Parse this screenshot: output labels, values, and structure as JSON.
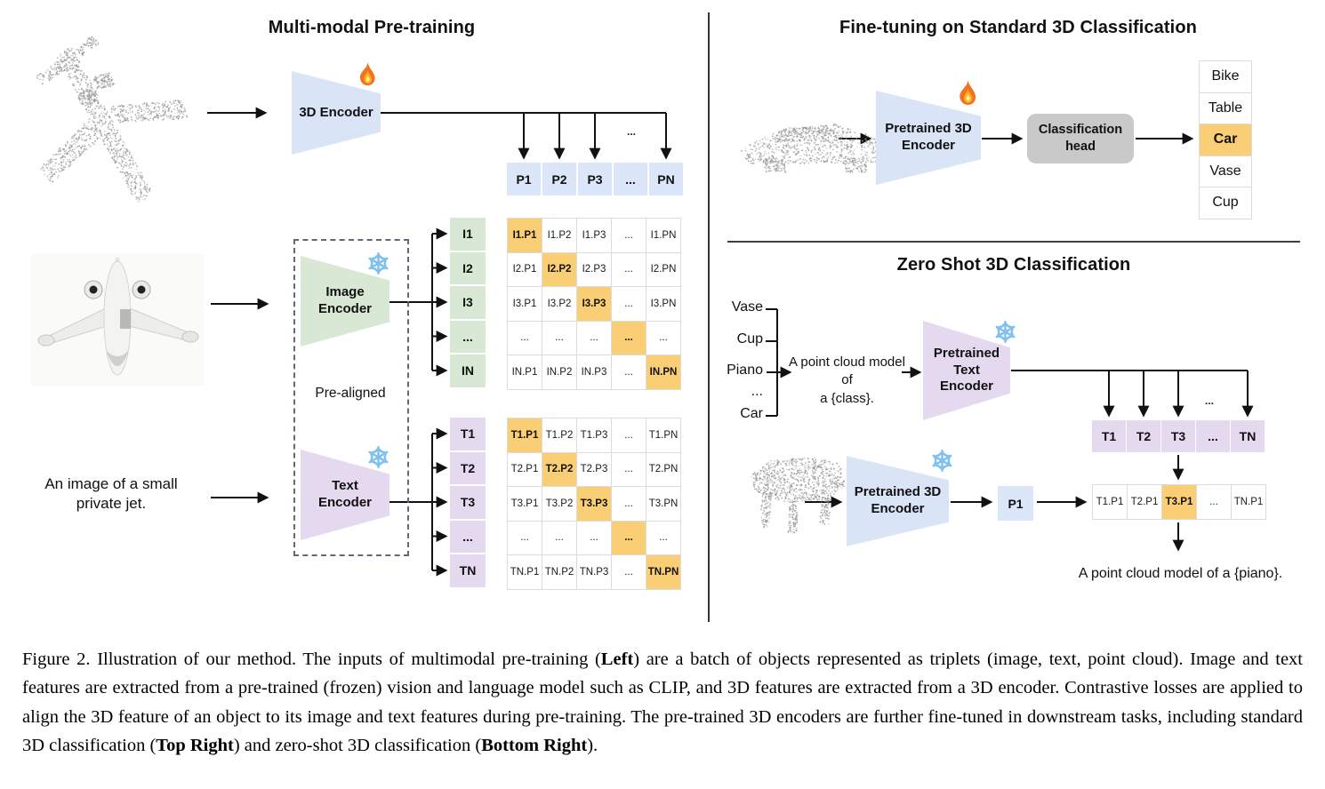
{
  "colors": {
    "blue": "#d9e4f7",
    "blue_cell": "#dbe6f9",
    "green": "#d8e8d4",
    "purple": "#e4d9ee",
    "orange": "#f9ce74",
    "gray_head": "#c9c9c9"
  },
  "left": {
    "title": "Multi-modal Pre-training",
    "encoder_3d_label": "3D Encoder",
    "image_encoder_label": "Image\nEncoder",
    "text_encoder_label": "Text\nEncoder",
    "pre_aligned": "Pre-aligned",
    "jet_caption": "An image of a small\nprivate jet.",
    "p_row": [
      "P1",
      "P2",
      "P3",
      "...",
      "PN"
    ],
    "i_labels": [
      "I1",
      "I2",
      "I3",
      "...",
      "IN"
    ],
    "t_labels": [
      "T1",
      "T2",
      "T3",
      "...",
      "TN"
    ],
    "i_matrix": [
      [
        "I1.P1",
        "I1.P2",
        "I1.P3",
        "...",
        "I1.PN"
      ],
      [
        "I2.P1",
        "I2.P2",
        "I2.P3",
        "...",
        "I2.PN"
      ],
      [
        "I3.P1",
        "I3.P2",
        "I3.P3",
        "...",
        "I3.PN"
      ],
      [
        "...",
        "...",
        "...",
        "...",
        "..."
      ],
      [
        "IN.P1",
        "IN.P2",
        "IN.P3",
        "...",
        "IN.PN"
      ]
    ],
    "t_matrix": [
      [
        "T1.P1",
        "T1.P2",
        "T1.P3",
        "...",
        "T1.PN"
      ],
      [
        "T2.P1",
        "T2.P2",
        "T2.P3",
        "...",
        "T2.PN"
      ],
      [
        "T3.P1",
        "T3.P2",
        "T3.P3",
        "...",
        "T3.PN"
      ],
      [
        "...",
        "...",
        "...",
        "...",
        "..."
      ],
      [
        "TN.P1",
        "TN.P2",
        "TN.P3",
        "...",
        "TN.PN"
      ]
    ]
  },
  "top_right": {
    "title": "Fine-tuning on Standard 3D Classification",
    "encoder_label": "Pretrained 3D\nEncoder",
    "head_label": "Classification\nhead",
    "classes": [
      "Bike",
      "Table",
      "Car",
      "Vase",
      "Cup"
    ],
    "highlighted_class": "Car"
  },
  "bottom_right": {
    "title": "Zero Shot 3D Classification",
    "classes": [
      "Vase",
      "Cup",
      "Piano",
      "...",
      "Car"
    ],
    "prompt": "A point cloud model of\na {class}.",
    "text_encoder_label": "Pretrained Text\nEncoder",
    "encoder_label": "Pretrained 3D\nEncoder",
    "p_cell": "P1",
    "t_row": [
      "T1",
      "T2",
      "T3",
      "...",
      "TN"
    ],
    "tp_row": [
      "T1.P1",
      "T2.P1",
      "T3.P1",
      "...",
      "TN.P1"
    ],
    "highlighted_tp": "T3.P1",
    "result": "A point cloud model of a {piano}."
  },
  "misc": {
    "ellipsis": "..."
  },
  "caption": {
    "segments": [
      {
        "text": "Figure 2. Illustration of our method. The inputs of multimodal pre-training (",
        "bold": false
      },
      {
        "text": "Left",
        "bold": true
      },
      {
        "text": ") are a batch of objects represented as triplets (image, text, point cloud). Image and text features are extracted from a pre-trained (frozen) vision and language model such as CLIP, and 3D features are extracted from a 3D encoder. Contrastive losses are applied to align the 3D feature of an object to its image and text features during pre-training. The pre-trained 3D encoders are further fine-tuned in downstream tasks, including standard 3D classification (",
        "bold": false
      },
      {
        "text": "Top Right",
        "bold": true
      },
      {
        "text": ") and zero-shot 3D classification (",
        "bold": false
      },
      {
        "text": "Bottom Right",
        "bold": true
      },
      {
        "text": ").",
        "bold": false
      }
    ]
  }
}
